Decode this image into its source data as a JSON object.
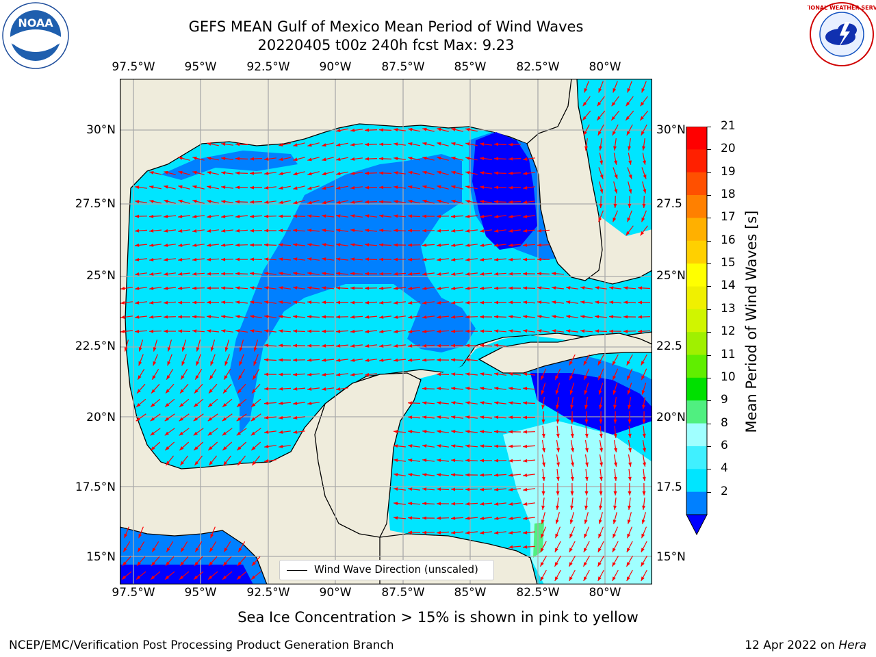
{
  "title": {
    "line1": "GEFS MEAN Gulf of Mexico Mean Period of Wind Waves",
    "line2": "20220405 t00z 240h fcst   Max: 9.23"
  },
  "logos": {
    "left": {
      "icon": "noaa-logo",
      "text": "NOAA"
    },
    "right": {
      "icon": "nws-logo",
      "ring_text": "NATIONAL WEATHER SERVICE"
    }
  },
  "map": {
    "lon_ticks": [
      "97.5°W",
      "95°W",
      "92.5°W",
      "90°W",
      "87.5°W",
      "85°W",
      "82.5°W",
      "80°W"
    ],
    "lat_ticks_left": [
      "30°N",
      "27.5°N",
      "25°N",
      "22.5°N",
      "20°N",
      "17.5°N",
      "15°N"
    ],
    "lat_ticks_right": [
      "30°N",
      "27.5",
      "25°N",
      "22.5",
      "20°N",
      "17.5",
      "15°N"
    ],
    "legend_label": "Wind Wave Direction (unscaled)",
    "colors": {
      "land": "#efecdc",
      "coast": "#000000",
      "grid": "#aaaaaa",
      "arrow": "#ff0000"
    }
  },
  "colorbar": {
    "label": "Mean Period of Wind Waves [s]",
    "ticks": [
      "2",
      "4",
      "6",
      "8",
      "9",
      "10",
      "11",
      "12",
      "13",
      "14",
      "15",
      "16",
      "17",
      "18",
      "19",
      "20",
      "21"
    ],
    "colors": [
      "#0000ff",
      "#0080ff",
      "#00e5ff",
      "#40f0ff",
      "#a0ffff",
      "#50ef80",
      "#00e000",
      "#60ee00",
      "#a0f000",
      "#d0f500",
      "#f0f000",
      "#ffff00",
      "#ffd000",
      "#ffb000",
      "#ff8000",
      "#ff5000",
      "#ff2000",
      "#ff0000"
    ]
  },
  "sea_ice_note": "Sea Ice Concentration > 15% is shown in pink to yellow",
  "footer": {
    "left": "NCEP/EMC/Verification Post Processing Product Generation Branch",
    "date": "12 Apr 2022 on ",
    "machine": "Hera"
  }
}
